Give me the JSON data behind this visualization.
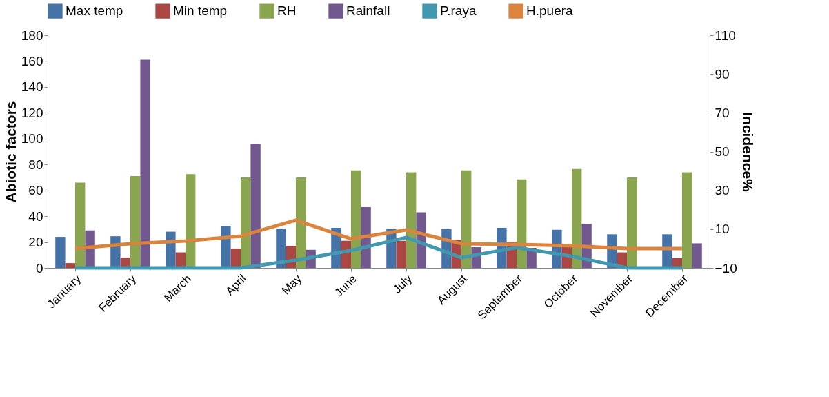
{
  "chart_data": {
    "type": "bar",
    "ylabel": "Abiotic factors",
    "y2label": "Incidence%",
    "categories": [
      "January",
      "February",
      "March",
      "April",
      "May",
      "June",
      "July",
      "August",
      "September",
      "October",
      "November",
      "December"
    ],
    "series": [
      {
        "name": "Max temp",
        "color": "#4572a7",
        "values": [
          24,
          24.5,
          28,
          32.5,
          30.5,
          31,
          30,
          30,
          31,
          29.5,
          26,
          26
        ]
      },
      {
        "name": "Min temp",
        "color": "#aa4643",
        "values": [
          3.7,
          8,
          12,
          15,
          17,
          21,
          21,
          21.5,
          20,
          18.5,
          12,
          7.5
        ]
      },
      {
        "name": "RH",
        "color": "#89a54e",
        "values": [
          66,
          71,
          72.5,
          70,
          70,
          75.5,
          74,
          75.5,
          68.5,
          76.5,
          70,
          74
        ]
      },
      {
        "name": "Rainfall",
        "color": "#71588f",
        "values": [
          29,
          161,
          null,
          96,
          14,
          47,
          43,
          16,
          15.5,
          34,
          null,
          19
        ]
      },
      {
        "name": "P.raya",
        "type": "line",
        "axis": "y2",
        "color": "#4198af",
        "values": [
          -10,
          -10,
          -10,
          -10,
          -6,
          -1,
          5.7,
          -4.7,
          0.5,
          -4,
          -10,
          -10
        ]
      },
      {
        "name": "H.puera",
        "type": "line",
        "axis": "y2",
        "color": "#db843d",
        "values": [
          0,
          2.5,
          3.9,
          6.4,
          14.6,
          5,
          9.6,
          2.5,
          2.1,
          1.4,
          0,
          0
        ]
      }
    ],
    "ylim": [
      0,
      180
    ],
    "yticks": [
      0,
      20,
      40,
      60,
      80,
      100,
      120,
      140,
      160,
      180
    ],
    "y2lim": [
      -10,
      110
    ],
    "y2ticks": [
      -10,
      10,
      30,
      50,
      70,
      90,
      110
    ],
    "legend": "top",
    "grid": false
  }
}
